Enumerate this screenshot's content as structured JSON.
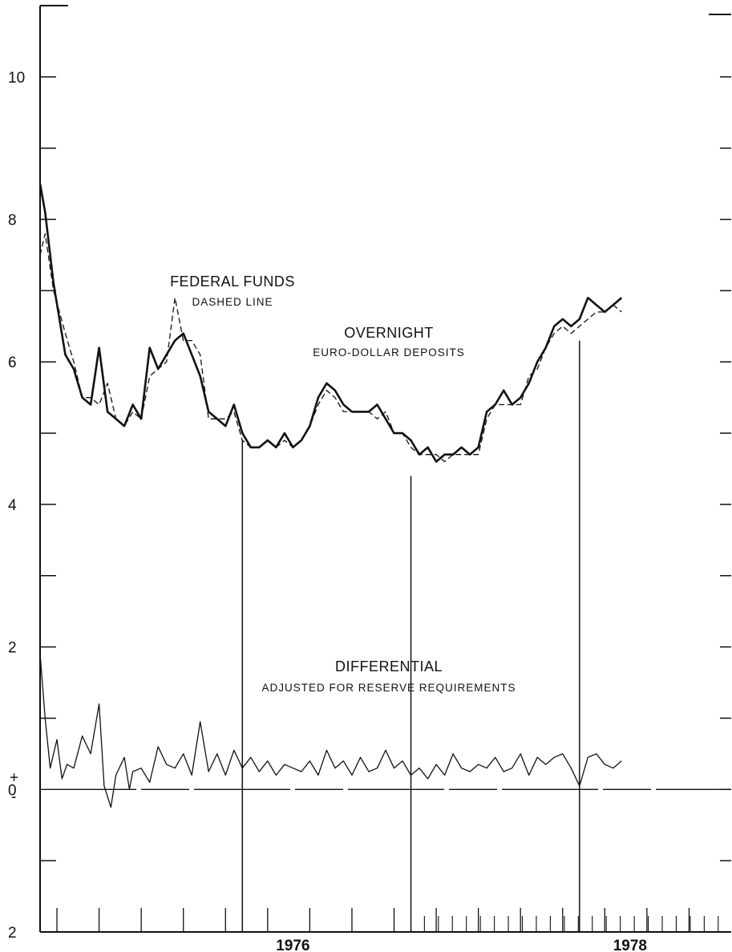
{
  "chart_data": {
    "type": "line",
    "title": "",
    "xlabel": "",
    "ylabel": "",
    "ylim": [
      -2,
      11
    ],
    "xlim": [
      1974.5,
      1978.6
    ],
    "grid": false,
    "y_tick_labels": [
      {
        "value": 10,
        "label": "10"
      },
      {
        "value": 8,
        "label": "8"
      },
      {
        "value": 6,
        "label": "6"
      },
      {
        "value": 4,
        "label": "4"
      },
      {
        "value": 2,
        "label": "2"
      },
      {
        "value": 0,
        "label": "0"
      },
      {
        "value": -2,
        "label": "2"
      }
    ],
    "zero_signs": {
      "plus": "+",
      "minus": "-"
    },
    "x_tick_labels": [
      {
        "value": 1976.0,
        "label": "1976"
      },
      {
        "value": 1978.0,
        "label": "1978"
      }
    ],
    "annotations": [
      {
        "id": "fedfunds",
        "title": "FEDERAL FUNDS",
        "subtitle": "DASHED LINE"
      },
      {
        "id": "overnight",
        "title": "OVERNIGHT",
        "subtitle": "EURO-DOLLAR DEPOSITS"
      },
      {
        "id": "differential",
        "title": "DIFFERENTIAL",
        "subtitle": "ADJUSTED FOR RESERVE REQUIREMENTS"
      }
    ],
    "vertical_markers": [
      {
        "x": 1975.7,
        "top": 4.9
      },
      {
        "x": 1976.7,
        "top": 4.4
      },
      {
        "x": 1977.7,
        "top": 6.3
      }
    ],
    "series": [
      {
        "style": "solid-thick",
        "x": [
          1974.5,
          1974.53,
          1974.58,
          1974.65,
          1974.7,
          1974.75,
          1974.8,
          1974.85,
          1974.9,
          1974.95,
          1975.0,
          1975.05,
          1975.1,
          1975.15,
          1975.2,
          1975.25,
          1975.3,
          1975.35,
          1975.4,
          1975.45,
          1975.5,
          1975.55,
          1975.6,
          1975.65,
          1975.7,
          1975.75,
          1975.8,
          1975.85,
          1975.9,
          1975.95,
          1976.0,
          1976.05,
          1976.1,
          1976.15,
          1976.2,
          1976.25,
          1976.3,
          1976.35,
          1976.4,
          1976.45,
          1976.5,
          1976.55,
          1976.6,
          1976.65,
          1976.7,
          1976.75,
          1976.8,
          1976.85,
          1976.9,
          1976.95,
          1977.0,
          1977.05,
          1977.1,
          1977.15,
          1977.2,
          1977.25,
          1977.3,
          1977.35,
          1977.4,
          1977.45,
          1977.5,
          1977.55,
          1977.6,
          1977.65,
          1977.7,
          1977.75,
          1977.8,
          1977.85,
          1977.9,
          1977.95
        ],
        "values": [
          8.5,
          8.1,
          7.1,
          6.1,
          5.9,
          5.5,
          5.4,
          6.2,
          5.3,
          5.2,
          5.1,
          5.4,
          5.2,
          6.2,
          5.9,
          6.1,
          6.3,
          6.4,
          6.1,
          5.8,
          5.3,
          5.2,
          5.1,
          5.4,
          5.0,
          4.8,
          4.8,
          4.9,
          4.8,
          5.0,
          4.8,
          4.9,
          5.1,
          5.5,
          5.7,
          5.6,
          5.4,
          5.3,
          5.3,
          5.3,
          5.4,
          5.2,
          5.0,
          5.0,
          4.9,
          4.7,
          4.8,
          4.6,
          4.7,
          4.7,
          4.8,
          4.7,
          4.8,
          5.3,
          5.4,
          5.6,
          5.4,
          5.5,
          5.7,
          6.0,
          6.2,
          6.5,
          6.6,
          6.5,
          6.6,
          6.9,
          6.8,
          6.7,
          6.8,
          6.9
        ]
      },
      {
        "style": "dashed",
        "x": [
          1974.5,
          1974.53,
          1974.58,
          1974.65,
          1974.7,
          1974.75,
          1974.8,
          1974.85,
          1974.9,
          1974.95,
          1975.0,
          1975.05,
          1975.1,
          1975.15,
          1975.2,
          1975.25,
          1975.3,
          1975.35,
          1975.4,
          1975.45,
          1975.5,
          1975.55,
          1975.6,
          1975.65,
          1975.7,
          1975.75,
          1975.8,
          1975.85,
          1975.9,
          1975.95,
          1976.0,
          1976.05,
          1976.1,
          1976.15,
          1976.2,
          1976.25,
          1976.3,
          1976.35,
          1976.4,
          1976.45,
          1976.5,
          1976.55,
          1976.6,
          1976.65,
          1976.7,
          1976.75,
          1976.8,
          1976.85,
          1976.9,
          1976.95,
          1977.0,
          1977.05,
          1977.1,
          1977.15,
          1977.2,
          1977.25,
          1977.3,
          1977.35,
          1977.4,
          1977.45,
          1977.5,
          1977.55,
          1977.6,
          1977.65,
          1977.7,
          1977.75,
          1977.8,
          1977.85,
          1977.9,
          1977.95
        ],
        "values": [
          7.5,
          7.8,
          7.0,
          6.4,
          6.0,
          5.5,
          5.5,
          5.4,
          5.7,
          5.2,
          5.1,
          5.3,
          5.2,
          5.8,
          5.9,
          6.0,
          6.9,
          6.3,
          6.3,
          6.1,
          5.2,
          5.2,
          5.2,
          5.3,
          4.9,
          4.8,
          4.8,
          4.9,
          4.8,
          4.9,
          4.8,
          4.9,
          5.1,
          5.4,
          5.6,
          5.5,
          5.3,
          5.3,
          5.3,
          5.3,
          5.2,
          5.3,
          5.0,
          5.0,
          4.8,
          4.7,
          4.7,
          4.7,
          4.6,
          4.7,
          4.7,
          4.7,
          4.7,
          5.2,
          5.4,
          5.4,
          5.4,
          5.4,
          5.8,
          5.9,
          6.2,
          6.4,
          6.5,
          6.4,
          6.5,
          6.6,
          6.7,
          6.7,
          6.8,
          6.7
        ]
      },
      {
        "style": "solid-thin",
        "x": [
          1974.5,
          1974.53,
          1974.56,
          1974.6,
          1974.63,
          1974.66,
          1974.7,
          1974.75,
          1974.8,
          1974.85,
          1974.88,
          1974.92,
          1974.95,
          1975.0,
          1975.03,
          1975.05,
          1975.1,
          1975.15,
          1975.2,
          1975.25,
          1975.3,
          1975.35,
          1975.4,
          1975.45,
          1975.5,
          1975.55,
          1975.6,
          1975.65,
          1975.7,
          1975.75,
          1975.8,
          1975.85,
          1975.9,
          1975.95,
          1976.0,
          1976.05,
          1976.1,
          1976.15,
          1976.2,
          1976.25,
          1976.3,
          1976.35,
          1976.4,
          1976.45,
          1976.5,
          1976.55,
          1976.6,
          1976.65,
          1976.7,
          1976.75,
          1976.8,
          1976.85,
          1976.9,
          1976.95,
          1977.0,
          1977.05,
          1977.1,
          1977.15,
          1977.2,
          1977.25,
          1977.3,
          1977.35,
          1977.4,
          1977.45,
          1977.5,
          1977.55,
          1977.6,
          1977.65,
          1977.7,
          1977.75,
          1977.8,
          1977.85,
          1977.9,
          1977.95
        ],
        "values": [
          1.9,
          1.0,
          0.3,
          0.7,
          0.15,
          0.35,
          0.3,
          0.75,
          0.5,
          1.2,
          0.05,
          -0.25,
          0.2,
          0.45,
          0.0,
          0.25,
          0.3,
          0.1,
          0.6,
          0.35,
          0.3,
          0.5,
          0.2,
          0.95,
          0.25,
          0.5,
          0.2,
          0.55,
          0.3,
          0.45,
          0.25,
          0.4,
          0.2,
          0.35,
          0.3,
          0.25,
          0.4,
          0.2,
          0.55,
          0.3,
          0.4,
          0.2,
          0.45,
          0.25,
          0.3,
          0.55,
          0.3,
          0.4,
          0.2,
          0.3,
          0.15,
          0.35,
          0.2,
          0.5,
          0.3,
          0.25,
          0.35,
          0.3,
          0.45,
          0.25,
          0.3,
          0.5,
          0.2,
          0.45,
          0.35,
          0.45,
          0.5,
          0.3,
          0.05,
          0.45,
          0.5,
          0.35,
          0.3,
          0.4
        ]
      }
    ]
  }
}
